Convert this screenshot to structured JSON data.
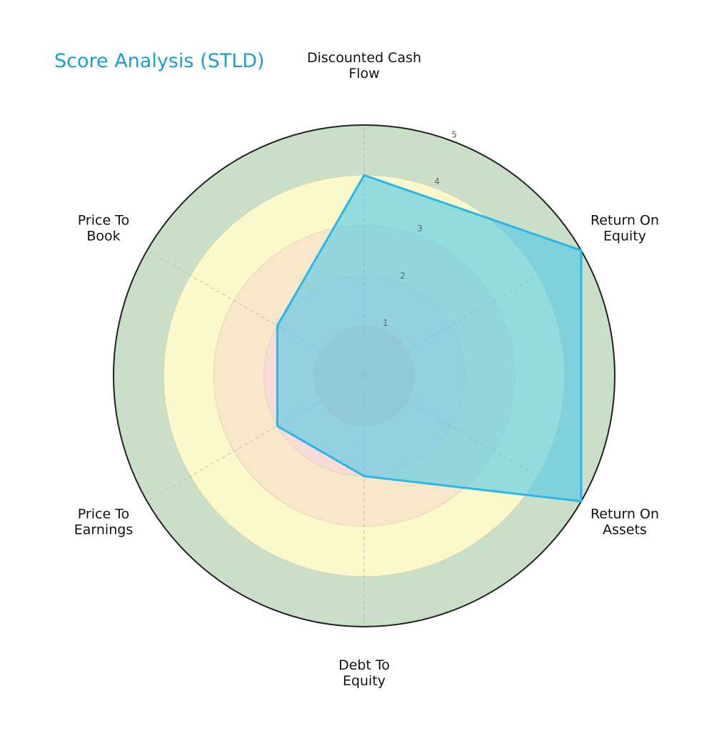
{
  "chart_data": {
    "type": "radar",
    "title": "Score Analysis (STLD)",
    "categories": [
      "Discounted Cash Flow",
      "Return On Equity",
      "Return On Assets",
      "Debt To Equity",
      "Price To Earnings",
      "Price To Book"
    ],
    "label_lines": [
      [
        "Discounted Cash",
        "Flow"
      ],
      [
        "Return On",
        "Equity"
      ],
      [
        "Return On",
        "Assets"
      ],
      [
        "Debt To",
        "Equity"
      ],
      [
        "Price To",
        "Earnings"
      ],
      [
        "Price To",
        "Book"
      ]
    ],
    "series": [
      {
        "name": "STLD",
        "values": [
          4,
          5,
          5,
          2,
          2,
          2
        ]
      }
    ],
    "rlim": [
      0,
      5
    ],
    "rticks": [
      "1",
      "2",
      "3",
      "4",
      "5"
    ],
    "ring_colors": [
      "#f4c7c3",
      "#f9dcd6",
      "#f9e7c9",
      "#fbf8c9",
      "#c9dfc8"
    ],
    "series_color": "#29b6e8",
    "fill_color": "#4ec9e8",
    "title_color": "#1a9fcf"
  }
}
